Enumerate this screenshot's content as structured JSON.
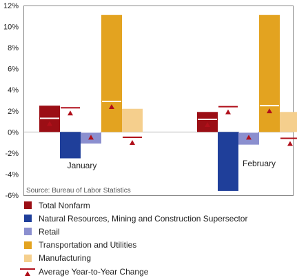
{
  "chart_data": {
    "type": "bar",
    "categories": [
      "January",
      "February"
    ],
    "series": [
      {
        "name": "Total Nonfarm",
        "color": "#9b0e15",
        "values": [
          2.5,
          1.9
        ],
        "average": [
          1.3,
          1.2
        ]
      },
      {
        "name": "Natural Resources, Mining and Construction Supersector",
        "color": "#1f3f9a",
        "values": [
          -2.5,
          -5.6
        ],
        "average": [
          2.3,
          2.4
        ]
      },
      {
        "name": "Retail",
        "color": "#8b8fcf",
        "values": [
          -1.1,
          -1.2
        ],
        "average": [
          0.0,
          0.0
        ]
      },
      {
        "name": "Transportation and Utilities",
        "color": "#e3a320",
        "values": [
          11.1,
          11.1
        ],
        "average": [
          2.9,
          2.5
        ]
      },
      {
        "name": "Manufacturing",
        "color": "#f5cf8d",
        "values": [
          2.2,
          1.9
        ],
        "average": [
          -0.5,
          -0.6
        ]
      }
    ],
    "average_marker": {
      "label": "Average Year-to-Year Change",
      "color": "#b00f1a"
    },
    "yticks": [
      "12%",
      "10%",
      "8%",
      "6%",
      "4%",
      "2%",
      "0%",
      "-2%",
      "-4%",
      "-6%"
    ],
    "ylim": [
      -6,
      12
    ],
    "source": "Source: Bureau of Labor Statistics",
    "grid": false,
    "legend_position": "bottom"
  }
}
